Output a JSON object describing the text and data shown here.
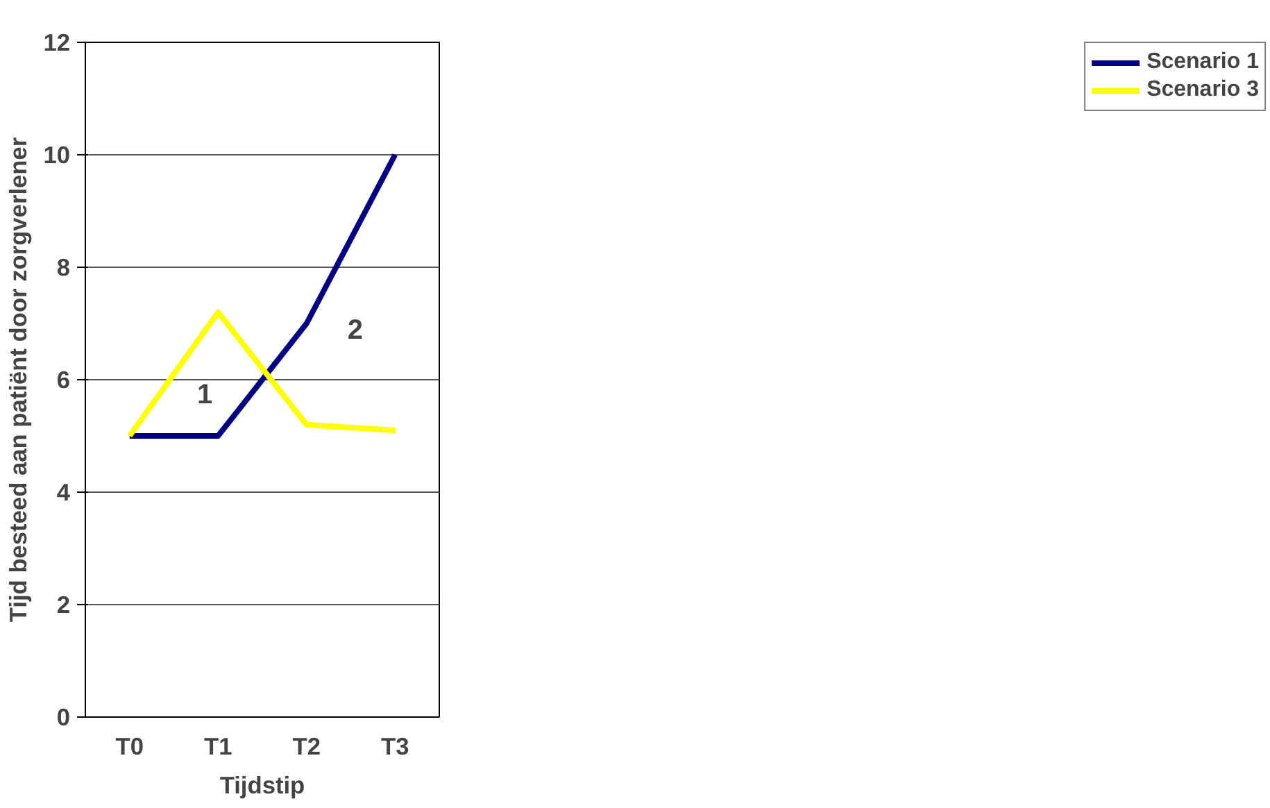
{
  "chart_data": {
    "type": "line",
    "xlabel": "Tijdstip",
    "ylabel": "Tijd besteed aan patiënt door zorgverlener",
    "categories": [
      "T0",
      "T1",
      "T2",
      "T3"
    ],
    "series": [
      {
        "name": "Scenario 1",
        "color": "#000080",
        "values": [
          5,
          5,
          7,
          10
        ]
      },
      {
        "name": "Scenario 3",
        "color": "#ffff00",
        "values": [
          5,
          7.2,
          5.2,
          5.1
        ]
      }
    ],
    "ylim": [
      0,
      12
    ],
    "yticks": [
      0,
      2,
      4,
      6,
      8,
      10,
      12
    ],
    "grid": "y",
    "legend": "right",
    "marker": "none",
    "line_style": "solid",
    "annotations": [
      "1",
      "2"
    ]
  }
}
